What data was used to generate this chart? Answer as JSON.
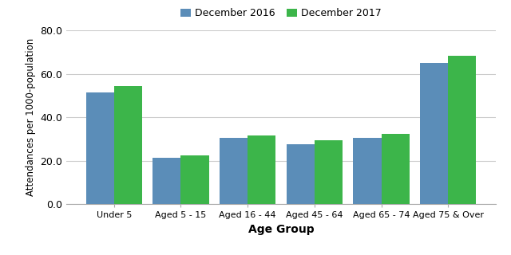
{
  "categories": [
    "Under 5",
    "Aged 5 - 15",
    "Aged 16 - 44",
    "Aged 45 - 64",
    "Aged 65 - 74",
    "Aged 75 & Over"
  ],
  "dec2016": [
    51.5,
    21.5,
    30.5,
    27.5,
    30.5,
    65.0
  ],
  "dec2017": [
    54.5,
    22.5,
    31.5,
    29.5,
    32.5,
    68.5
  ],
  "color_2016": "#5B8DB8",
  "color_2017": "#3CB54A",
  "xlabel": "Age Group",
  "ylabel": "Attendances per 1000-population",
  "ylim": [
    0,
    80.0
  ],
  "yticks": [
    0.0,
    20.0,
    40.0,
    60.0,
    80.0
  ],
  "legend_labels": [
    "December 2016",
    "December 2017"
  ],
  "bar_width": 0.42,
  "background_color": "#ffffff",
  "grid_color": "#cccccc"
}
